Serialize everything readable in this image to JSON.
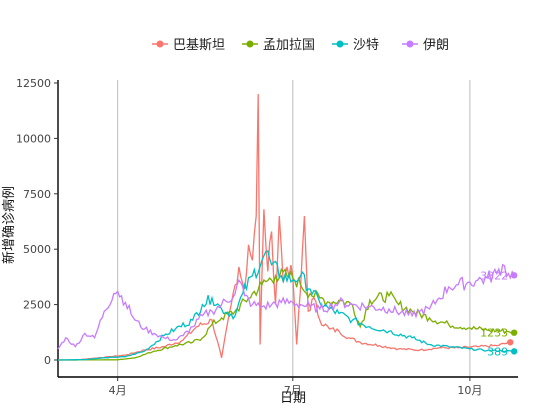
{
  "chart_data": {
    "type": "line",
    "xlabel": "日期",
    "ylabel": "新增确诊病例",
    "ylim": [
      0,
      12500
    ],
    "yticks": [
      0,
      2500,
      5000,
      7500,
      10000,
      12500
    ],
    "ytick_labels": [
      "0",
      "2500",
      "5000",
      "7500",
      "10000",
      "12500"
    ],
    "xlim": [
      "2020-03-01",
      "2020-10-26"
    ],
    "xticks": [
      "2020-04-01",
      "2020-07-01",
      "2020-10-01"
    ],
    "xtick_labels": [
      "4月",
      "7月",
      "10月"
    ],
    "grid": "vertical-major-only",
    "legend_position": "top",
    "series": [
      {
        "name": "巴基斯坦",
        "color": "#F8766D",
        "end_label": "",
        "points": [
          [
            "2020-03-01",
            0
          ],
          [
            "2020-03-10",
            2
          ],
          [
            "2020-03-20",
            80
          ],
          [
            "2020-03-28",
            150
          ],
          [
            "2020-04-05",
            220
          ],
          [
            "2020-04-15",
            450
          ],
          [
            "2020-04-25",
            600
          ],
          [
            "2020-05-05",
            900
          ],
          [
            "2020-05-12",
            1500
          ],
          [
            "2020-05-20",
            1800
          ],
          [
            "2020-05-25",
            100
          ],
          [
            "2020-05-30",
            2500
          ],
          [
            "2020-06-03",
            4200
          ],
          [
            "2020-06-06",
            3200
          ],
          [
            "2020-06-08",
            5200
          ],
          [
            "2020-06-10",
            4500
          ],
          [
            "2020-06-12",
            6500
          ],
          [
            "2020-06-13",
            12000
          ],
          [
            "2020-06-14",
            700
          ],
          [
            "2020-06-16",
            6800
          ],
          [
            "2020-06-18",
            4000
          ],
          [
            "2020-06-20",
            5800
          ],
          [
            "2020-06-22",
            2500
          ],
          [
            "2020-06-24",
            6500
          ],
          [
            "2020-06-26",
            3500
          ],
          [
            "2020-06-28",
            4200
          ],
          [
            "2020-07-01",
            3800
          ],
          [
            "2020-07-03",
            700
          ],
          [
            "2020-07-05",
            3200
          ],
          [
            "2020-07-07",
            6500
          ],
          [
            "2020-07-09",
            2200
          ],
          [
            "2020-07-12",
            2800
          ],
          [
            "2020-07-15",
            1800
          ],
          [
            "2020-07-20",
            1400
          ],
          [
            "2020-07-25",
            1300
          ],
          [
            "2020-07-30",
            1000
          ],
          [
            "2020-08-05",
            800
          ],
          [
            "2020-08-15",
            650
          ],
          [
            "2020-08-25",
            500
          ],
          [
            "2020-09-05",
            450
          ],
          [
            "2020-09-15",
            550
          ],
          [
            "2020-09-25",
            550
          ],
          [
            "2020-10-05",
            600
          ],
          [
            "2020-10-15",
            650
          ],
          [
            "2020-10-22",
            800
          ]
        ]
      },
      {
        "name": "孟加拉国",
        "color": "#7CAE00",
        "end_label": "1233",
        "points": [
          [
            "2020-03-01",
            0
          ],
          [
            "2020-03-15",
            3
          ],
          [
            "2020-04-01",
            10
          ],
          [
            "2020-04-10",
            100
          ],
          [
            "2020-04-20",
            400
          ],
          [
            "2020-05-01",
            650
          ],
          [
            "2020-05-10",
            800
          ],
          [
            "2020-05-15",
            1000
          ],
          [
            "2020-05-20",
            1600
          ],
          [
            "2020-05-25",
            1900
          ],
          [
            "2020-06-01",
            2200
          ],
          [
            "2020-06-08",
            2800
          ],
          [
            "2020-06-15",
            3400
          ],
          [
            "2020-06-22",
            3800
          ],
          [
            "2020-06-28",
            3800
          ],
          [
            "2020-07-01",
            3700
          ],
          [
            "2020-07-05",
            3400
          ],
          [
            "2020-07-10",
            3000
          ],
          [
            "2020-07-15",
            2800
          ],
          [
            "2020-07-20",
            2600
          ],
          [
            "2020-07-25",
            2700
          ],
          [
            "2020-08-01",
            2500
          ],
          [
            "2020-08-05",
            1500
          ],
          [
            "2020-08-10",
            2700
          ],
          [
            "2020-08-20",
            2900
          ],
          [
            "2020-08-25",
            2500
          ],
          [
            "2020-09-01",
            2200
          ],
          [
            "2020-09-10",
            1900
          ],
          [
            "2020-09-20",
            1600
          ],
          [
            "2020-10-01",
            1450
          ],
          [
            "2020-10-10",
            1350
          ],
          [
            "2020-10-20",
            1300
          ],
          [
            "2020-10-24",
            1233
          ]
        ]
      },
      {
        "name": "沙特",
        "color": "#00BFC4",
        "end_label": "389",
        "points": [
          [
            "2020-03-01",
            0
          ],
          [
            "2020-03-15",
            20
          ],
          [
            "2020-03-25",
            100
          ],
          [
            "2020-04-05",
            150
          ],
          [
            "2020-04-15",
            400
          ],
          [
            "2020-04-25",
            1100
          ],
          [
            "2020-05-01",
            1400
          ],
          [
            "2020-05-10",
            1800
          ],
          [
            "2020-05-15",
            2500
          ],
          [
            "2020-05-20",
            2800
          ],
          [
            "2020-05-25",
            2300
          ],
          [
            "2020-06-01",
            2000
          ],
          [
            "2020-06-05",
            3000
          ],
          [
            "2020-06-10",
            3800
          ],
          [
            "2020-06-15",
            4500
          ],
          [
            "2020-06-17",
            4900
          ],
          [
            "2020-06-20",
            4300
          ],
          [
            "2020-06-25",
            3800
          ],
          [
            "2020-07-01",
            3600
          ],
          [
            "2020-07-05",
            3800
          ],
          [
            "2020-07-10",
            3200
          ],
          [
            "2020-07-15",
            2600
          ],
          [
            "2020-07-20",
            2300
          ],
          [
            "2020-07-25",
            2100
          ],
          [
            "2020-08-01",
            1800
          ],
          [
            "2020-08-10",
            1500
          ],
          [
            "2020-08-20",
            1300
          ],
          [
            "2020-09-01",
            1000
          ],
          [
            "2020-09-10",
            700
          ],
          [
            "2020-09-20",
            600
          ],
          [
            "2020-10-01",
            500
          ],
          [
            "2020-10-10",
            430
          ],
          [
            "2020-10-24",
            389
          ]
        ]
      },
      {
        "name": "伊朗",
        "color": "#C77CFF",
        "end_label": "3822",
        "points": [
          [
            "2020-03-01",
            500
          ],
          [
            "2020-03-05",
            1000
          ],
          [
            "2020-03-10",
            600
          ],
          [
            "2020-03-15",
            1200
          ],
          [
            "2020-03-20",
            1000
          ],
          [
            "2020-03-25",
            2200
          ],
          [
            "2020-03-30",
            3000
          ],
          [
            "2020-04-01",
            3100
          ],
          [
            "2020-04-05",
            2600
          ],
          [
            "2020-04-10",
            1800
          ],
          [
            "2020-04-15",
            1400
          ],
          [
            "2020-04-20",
            1200
          ],
          [
            "2020-04-25",
            1000
          ],
          [
            "2020-05-01",
            900
          ],
          [
            "2020-05-05",
            1100
          ],
          [
            "2020-05-10",
            1500
          ],
          [
            "2020-05-15",
            2000
          ],
          [
            "2020-05-20",
            2200
          ],
          [
            "2020-05-25",
            2500
          ],
          [
            "2020-06-01",
            3000
          ],
          [
            "2020-06-03",
            3600
          ],
          [
            "2020-06-06",
            2900
          ],
          [
            "2020-06-10",
            2500
          ],
          [
            "2020-06-15",
            2400
          ],
          [
            "2020-06-20",
            2500
          ],
          [
            "2020-06-25",
            2600
          ],
          [
            "2020-07-01",
            2600
          ],
          [
            "2020-07-05",
            2500
          ],
          [
            "2020-07-10",
            2400
          ],
          [
            "2020-07-15",
            2300
          ],
          [
            "2020-07-20",
            2400
          ],
          [
            "2020-07-25",
            2600
          ],
          [
            "2020-08-01",
            2500
          ],
          [
            "2020-08-10",
            2400
          ],
          [
            "2020-08-20",
            2300
          ],
          [
            "2020-09-01",
            2000
          ],
          [
            "2020-09-05",
            2200
          ],
          [
            "2020-09-10",
            2300
          ],
          [
            "2020-09-15",
            2800
          ],
          [
            "2020-09-20",
            3300
          ],
          [
            "2020-09-25",
            3400
          ],
          [
            "2020-10-01",
            3500
          ],
          [
            "2020-10-05",
            3600
          ],
          [
            "2020-10-10",
            3700
          ],
          [
            "2020-10-15",
            3900
          ],
          [
            "2020-10-18",
            4300
          ],
          [
            "2020-10-21",
            3900
          ],
          [
            "2020-10-24",
            3822
          ]
        ]
      }
    ]
  }
}
